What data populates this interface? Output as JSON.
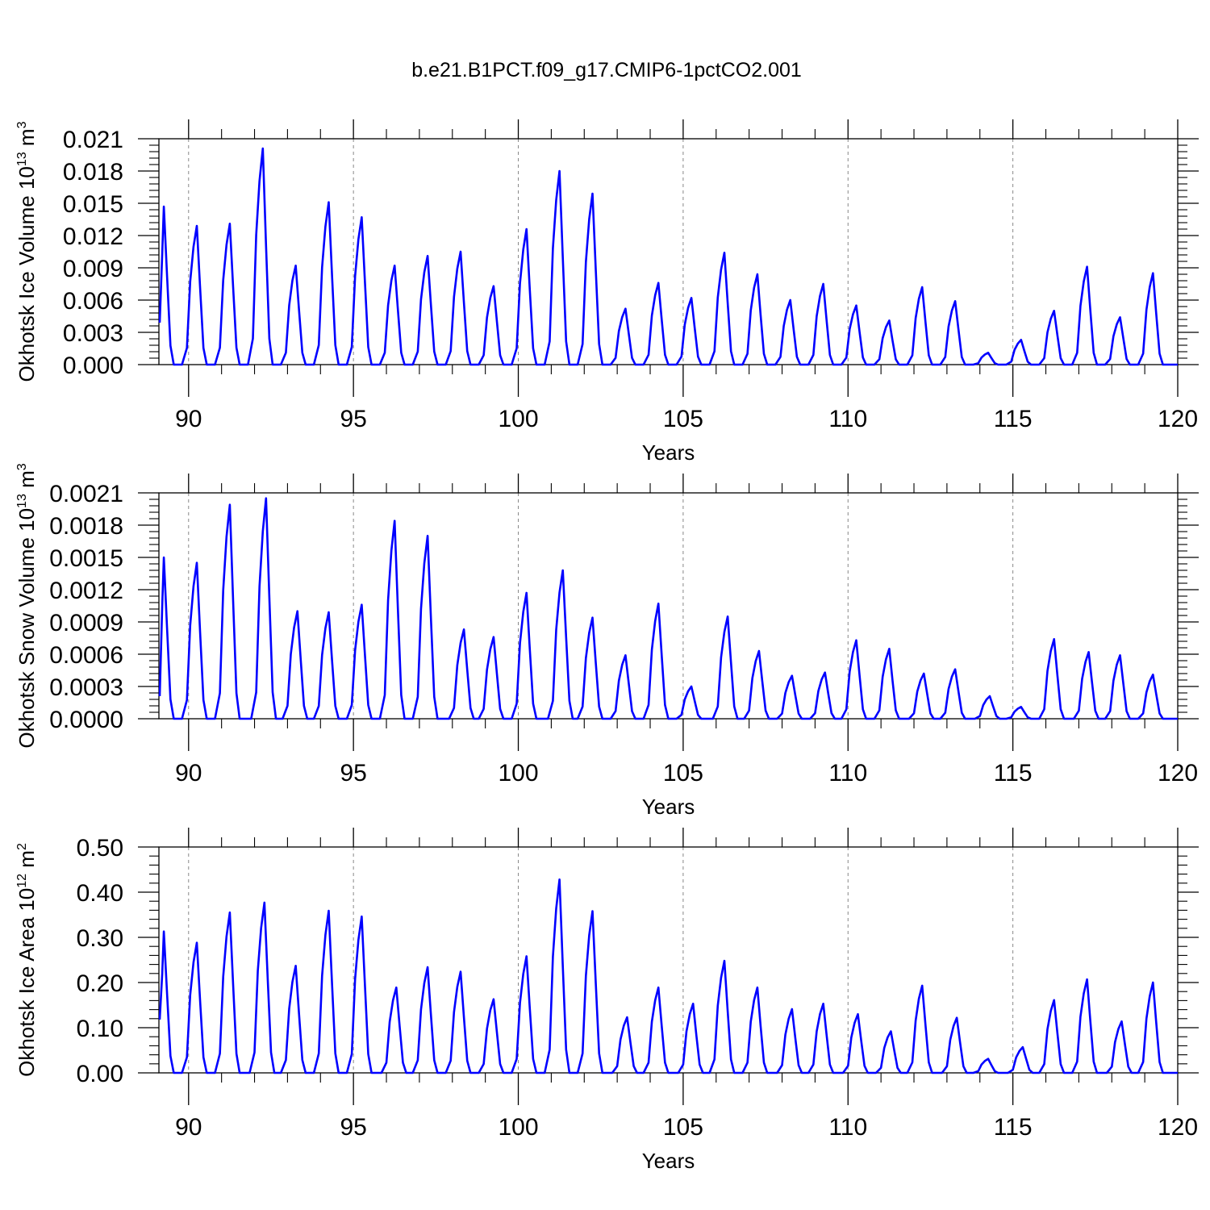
{
  "title": "b.e21.B1PCT.f09_g17.CMIP6-1pctCO2.001",
  "colors": {
    "line": "#0000ff",
    "axis": "#000000",
    "grid": "#888888"
  },
  "chart_data": [
    {
      "type": "line",
      "title": "b.e21.B1PCT.f09_g17.CMIP6-1pctCO2.001",
      "ylabel_main": "Okhotsk Ice Volume 10",
      "ylabel_exp": "13",
      "ylabel_unit": "m",
      "ylabel_unit_exp": "3",
      "xlabel": "Years",
      "xlim": [
        89.1,
        120.0
      ],
      "ylim": [
        0.0,
        0.021
      ],
      "yticks": [
        0.0,
        0.003,
        0.006,
        0.009,
        0.012,
        0.015,
        0.018,
        0.021
      ],
      "ytick_labels": [
        "0.000",
        "0.003",
        "0.006",
        "0.009",
        "0.012",
        "0.015",
        "0.018",
        "0.021"
      ],
      "xticks": [
        90,
        95,
        100,
        105,
        110,
        115,
        120
      ],
      "xtick_labels": [
        "90",
        "95",
        "100",
        "105",
        "110",
        "115",
        "120"
      ],
      "grid": "vertical dashed at major x ticks",
      "series": [
        {
          "x_start": 89.125,
          "x_step": 0.1,
          "peak_x": [
            89.25,
            90.25,
            91.25,
            92.25,
            93.25,
            94.25,
            95.25,
            96.25,
            97.25,
            98.25,
            99.25,
            100.25,
            101.25,
            102.25,
            103.25,
            104.25,
            105.25,
            106.25,
            107.25,
            108.25,
            109.25,
            110.25,
            111.25,
            112.25,
            113.25,
            114.25,
            115.25,
            116.25,
            117.25,
            118.25,
            119.25
          ],
          "peaks": [
            0.0147,
            0.0129,
            0.0131,
            0.0201,
            0.0092,
            0.0151,
            0.0137,
            0.0092,
            0.0101,
            0.0105,
            0.0073,
            0.0126,
            0.018,
            0.0159,
            0.0052,
            0.0076,
            0.0062,
            0.0104,
            0.0084,
            0.006,
            0.0075,
            0.0055,
            0.0041,
            0.0072,
            0.0059,
            0.0011,
            0.0023,
            0.005,
            0.0091,
            0.0044,
            0.0085
          ],
          "start_value": 0.0039
        }
      ]
    },
    {
      "type": "line",
      "ylabel_main": "Okhotsk Snow Volume 10",
      "ylabel_exp": "13",
      "ylabel_unit": "m",
      "ylabel_unit_exp": "3",
      "xlabel": "Years",
      "xlim": [
        89.1,
        120.0
      ],
      "ylim": [
        0.0,
        0.0021
      ],
      "yticks": [
        0.0,
        0.0003,
        0.0006,
        0.0009,
        0.0012,
        0.0015,
        0.0018,
        0.0021
      ],
      "ytick_labels": [
        "0.0000",
        "0.0003",
        "0.0006",
        "0.0009",
        "0.0012",
        "0.0015",
        "0.0018",
        "0.0021"
      ],
      "xticks": [
        90,
        95,
        100,
        105,
        110,
        115,
        120
      ],
      "xtick_labels": [
        "90",
        "95",
        "100",
        "105",
        "110",
        "115",
        "120"
      ],
      "grid": "vertical dashed at major x ticks",
      "series": [
        {
          "x_start": 89.125,
          "x_step": 0.1,
          "peak_x": [
            89.25,
            90.25,
            91.25,
            92.35,
            93.3,
            94.25,
            95.25,
            96.25,
            97.25,
            98.35,
            99.25,
            100.25,
            101.35,
            102.25,
            103.25,
            104.25,
            105.25,
            106.35,
            107.3,
            108.3,
            109.3,
            110.25,
            111.25,
            112.3,
            113.25,
            114.3,
            115.25,
            116.25,
            117.3,
            118.25,
            119.25
          ],
          "peaks": [
            0.0015,
            0.00145,
            0.00199,
            0.00205,
            0.001,
            0.00099,
            0.00106,
            0.00184,
            0.0017,
            0.00083,
            0.00076,
            0.00117,
            0.00138,
            0.00094,
            0.00059,
            0.00107,
            0.0003,
            0.00095,
            0.00063,
            0.0004,
            0.00043,
            0.00073,
            0.00065,
            0.00042,
            0.00046,
            0.00021,
            0.00011,
            0.00074,
            0.00062,
            0.00059,
            0.00041
          ],
          "start_value": 0.00021
        }
      ]
    },
    {
      "type": "line",
      "ylabel_main": "Okhotsk Ice Area 10",
      "ylabel_exp": "12",
      "ylabel_unit": "m",
      "ylabel_unit_exp": "2",
      "xlabel": "Years",
      "xlim": [
        89.1,
        120.0
      ],
      "ylim": [
        0.0,
        0.5
      ],
      "yticks": [
        0.0,
        0.1,
        0.2,
        0.3,
        0.4,
        0.5
      ],
      "ytick_labels": [
        "0.00",
        "0.10",
        "0.20",
        "0.30",
        "0.40",
        "0.50"
      ],
      "xticks": [
        90,
        95,
        100,
        105,
        110,
        115,
        120
      ],
      "xtick_labels": [
        "90",
        "95",
        "100",
        "105",
        "110",
        "115",
        "120"
      ],
      "grid": "vertical dashed at major x ticks",
      "series": [
        {
          "x_start": 89.125,
          "x_step": 0.1,
          "peak_x": [
            89.25,
            90.25,
            91.25,
            92.3,
            93.25,
            94.25,
            95.25,
            96.3,
            97.25,
            98.25,
            99.25,
            100.25,
            101.25,
            102.25,
            103.3,
            104.25,
            105.3,
            106.25,
            107.25,
            108.3,
            109.25,
            110.3,
            111.3,
            112.25,
            113.3,
            114.25,
            115.3,
            116.25,
            117.25,
            118.3,
            119.25
          ],
          "peaks": [
            0.313,
            0.288,
            0.355,
            0.377,
            0.237,
            0.359,
            0.346,
            0.189,
            0.234,
            0.224,
            0.163,
            0.258,
            0.428,
            0.358,
            0.123,
            0.189,
            0.153,
            0.248,
            0.189,
            0.141,
            0.153,
            0.13,
            0.092,
            0.193,
            0.122,
            0.031,
            0.057,
            0.161,
            0.207,
            0.114,
            0.2
          ],
          "start_value": 0.118
        }
      ]
    }
  ]
}
